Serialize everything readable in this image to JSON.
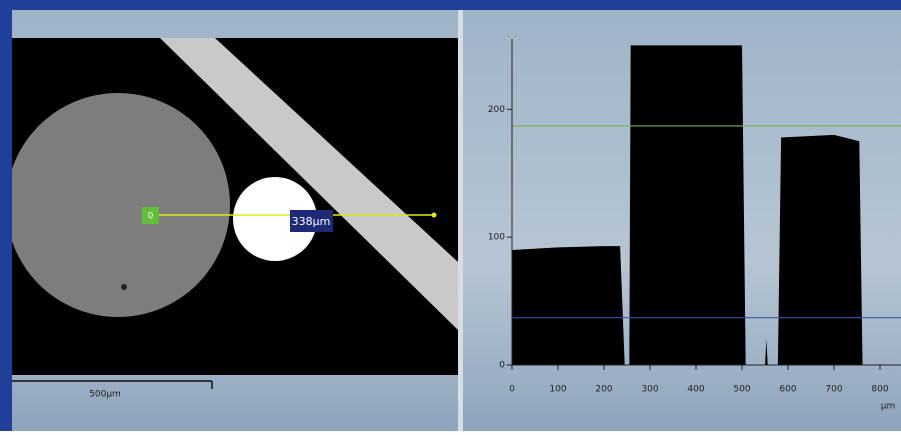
{
  "image_panel": {
    "marker_label": "0",
    "measure_label": "338µm",
    "scale_label": "500µm"
  },
  "chart_data": {
    "type": "area",
    "x_label": "µm",
    "x": [
      0,
      100,
      200,
      235,
      245,
      255,
      258,
      400,
      500,
      508,
      550,
      553,
      556,
      578,
      585,
      700,
      755,
      762,
      850
    ],
    "values": [
      90,
      92,
      93,
      93,
      0,
      0,
      250,
      250,
      250,
      0,
      0,
      20,
      0,
      0,
      178,
      180,
      175,
      0,
      0
    ],
    "color": "#000000",
    "thresholds": [
      {
        "value": 187,
        "color": "#7fae5a"
      },
      {
        "value": 37,
        "color": "#3a55a8"
      }
    ],
    "xlim": [
      0,
      850
    ],
    "ylim": [
      0,
      255
    ],
    "xticks": [
      0,
      100,
      200,
      300,
      400,
      500,
      600,
      700,
      800
    ],
    "yticks": [
      0,
      100,
      200
    ]
  }
}
